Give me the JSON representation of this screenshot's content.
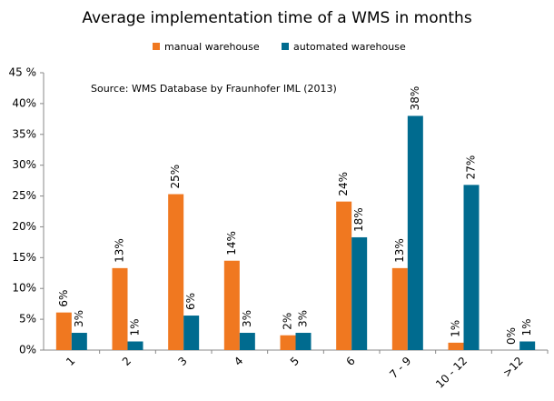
{
  "chart_data": {
    "type": "bar",
    "title": "Average implementation time of a WMS in months",
    "annotation": "Source: WMS Database by Fraunhofer IML (2013)",
    "categories": [
      "1",
      "2",
      "3",
      "4",
      "5",
      "6",
      "7 - 9",
      "10 - 12",
      ">12"
    ],
    "series": [
      {
        "name": "manual warehouse",
        "color": "#f07820",
        "values": [
          6.1,
          13.3,
          25.3,
          14.5,
          2.4,
          24.1,
          13.3,
          1.2,
          0
        ],
        "value_labels": [
          "6%",
          "13%",
          "25%",
          "14%",
          "2%",
          "24%",
          "13%",
          "1%",
          "0%"
        ]
      },
      {
        "name": "automated warehouse",
        "color": "#006b8f",
        "values": [
          2.8,
          1.4,
          5.6,
          2.8,
          2.8,
          18.3,
          38.0,
          26.8,
          1.4
        ],
        "value_labels": [
          "3%",
          "1%",
          "6%",
          "3%",
          "3%",
          "18%",
          "38%",
          "27%",
          "1%"
        ]
      }
    ],
    "ylim": [
      0,
      45
    ],
    "yticks": [
      {
        "value": 0,
        "label": "0%"
      },
      {
        "value": 5,
        "label": "5%"
      },
      {
        "value": 10,
        "label": "10%"
      },
      {
        "value": 15,
        "label": "15%"
      },
      {
        "value": 20,
        "label": "20%"
      },
      {
        "value": 25,
        "label": "25%"
      },
      {
        "value": 30,
        "label": "30%"
      },
      {
        "value": 35,
        "label": "35%"
      },
      {
        "value": 40,
        "label": "40%"
      },
      {
        "value": 45,
        "label": "45 %"
      }
    ],
    "grid": false
  }
}
